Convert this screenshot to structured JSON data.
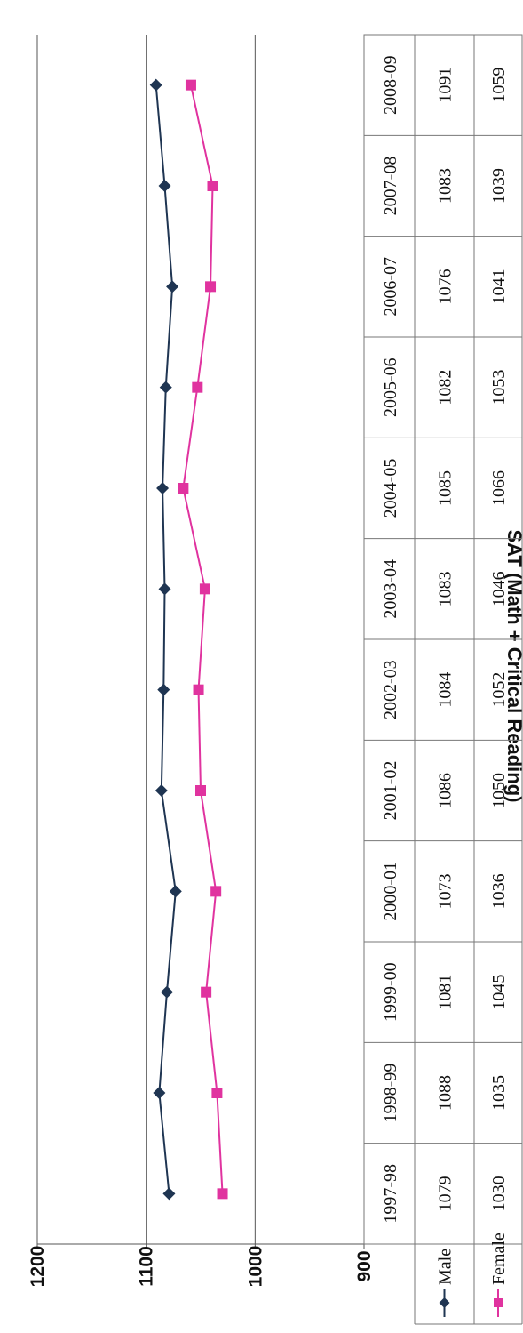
{
  "chart_data": {
    "type": "line",
    "ylabel": "SAT (Math + Critical Reading)",
    "ylim": [
      900,
      1200
    ],
    "yticks": [
      "900",
      "1000",
      "1100",
      "1200"
    ],
    "categories": [
      "1997-98",
      "1998-99",
      "1999-00",
      "2000-01",
      "2001-02",
      "2002-03",
      "2003-04",
      "2004-05",
      "2005-06",
      "2006-07",
      "2007-08",
      "2008-09"
    ],
    "series": [
      {
        "name": "Male",
        "values": [
          1079,
          1088,
          1081,
          1073,
          1086,
          1084,
          1083,
          1085,
          1082,
          1076,
          1083,
          1091
        ]
      },
      {
        "name": "Female",
        "values": [
          1030,
          1035,
          1045,
          1036,
          1050,
          1052,
          1046,
          1066,
          1053,
          1041,
          1039,
          1059
        ]
      }
    ],
    "grid": true,
    "legend": "data table"
  },
  "colors": {
    "male": "#1f3552",
    "female": "#e0339f"
  }
}
